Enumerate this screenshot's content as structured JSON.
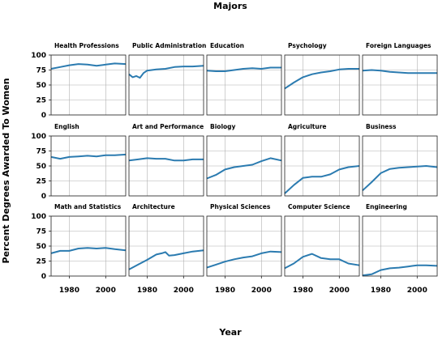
{
  "figure": {
    "title": "Majors",
    "xlabel": "Year",
    "ylabel": "Percent Degrees Awarded To Women"
  },
  "chart_data": {
    "type": "line",
    "x_range": [
      1970,
      2011
    ],
    "y_range": [
      0,
      100
    ],
    "x_ticks": [
      1980,
      2000
    ],
    "y_ticks": [
      0,
      25,
      50,
      75,
      100
    ],
    "grid": true,
    "line_color": "#2b7bb0",
    "panels": [
      {
        "name": "Health Professions",
        "x": [
          1970,
          1975,
          1980,
          1985,
          1990,
          1995,
          2000,
          2005,
          2011
        ],
        "y": [
          77,
          80,
          83,
          85,
          84,
          82,
          84,
          86,
          85
        ]
      },
      {
        "name": "Public Administration",
        "x": [
          1970,
          1972,
          1974,
          1976,
          1978,
          1980,
          1985,
          1990,
          1995,
          2000,
          2005,
          2011
        ],
        "y": [
          68,
          63,
          65,
          62,
          70,
          74,
          76,
          77,
          80,
          81,
          81,
          82
        ]
      },
      {
        "name": "Education",
        "x": [
          1970,
          1975,
          1980,
          1985,
          1990,
          1995,
          2000,
          2005,
          2011
        ],
        "y": [
          74,
          73,
          73,
          75,
          77,
          78,
          77,
          79,
          79
        ]
      },
      {
        "name": "Psychology",
        "x": [
          1970,
          1975,
          1980,
          1985,
          1990,
          1995,
          2000,
          2005,
          2011
        ],
        "y": [
          44,
          54,
          63,
          68,
          71,
          73,
          76,
          77,
          77
        ]
      },
      {
        "name": "Foreign Languages",
        "x": [
          1970,
          1975,
          1980,
          1985,
          1990,
          1995,
          2000,
          2005,
          2011
        ],
        "y": [
          74,
          75,
          74,
          72,
          71,
          70,
          70,
          70,
          70
        ]
      },
      {
        "name": "English",
        "x": [
          1970,
          1975,
          1980,
          1985,
          1990,
          1995,
          2000,
          2005,
          2011
        ],
        "y": [
          65,
          62,
          65,
          66,
          67,
          66,
          68,
          68,
          69
        ]
      },
      {
        "name": "Art and Performance",
        "x": [
          1970,
          1975,
          1980,
          1985,
          1990,
          1995,
          2000,
          2005,
          2011
        ],
        "y": [
          59,
          61,
          63,
          62,
          62,
          59,
          59,
          61,
          61
        ]
      },
      {
        "name": "Biology",
        "x": [
          1970,
          1975,
          1980,
          1985,
          1990,
          1995,
          2000,
          2005,
          2011
        ],
        "y": [
          29,
          35,
          44,
          48,
          50,
          52,
          58,
          63,
          59
        ]
      },
      {
        "name": "Agriculture",
        "x": [
          1970,
          1975,
          1980,
          1985,
          1990,
          1995,
          2000,
          2005,
          2011
        ],
        "y": [
          4,
          18,
          30,
          32,
          32,
          36,
          44,
          48,
          50
        ]
      },
      {
        "name": "Business",
        "x": [
          1970,
          1975,
          1980,
          1985,
          1990,
          1995,
          2000,
          2005,
          2011
        ],
        "y": [
          9,
          23,
          38,
          45,
          47,
          48,
          49,
          50,
          48
        ]
      },
      {
        "name": "Math and Statistics",
        "x": [
          1970,
          1975,
          1980,
          1985,
          1990,
          1995,
          2000,
          2005,
          2011
        ],
        "y": [
          38,
          42,
          42,
          46,
          47,
          46,
          47,
          45,
          43
        ]
      },
      {
        "name": "Architecture",
        "x": [
          1970,
          1975,
          1980,
          1985,
          1988,
          1990,
          1992,
          1995,
          2000,
          2005,
          2011
        ],
        "y": [
          11,
          19,
          27,
          36,
          38,
          40,
          34,
          35,
          38,
          41,
          43
        ]
      },
      {
        "name": "Physical Sciences",
        "x": [
          1970,
          1975,
          1980,
          1985,
          1990,
          1995,
          2000,
          2005,
          2011
        ],
        "y": [
          14,
          19,
          24,
          28,
          31,
          33,
          38,
          41,
          40
        ]
      },
      {
        "name": "Computer Science",
        "x": [
          1970,
          1975,
          1980,
          1985,
          1990,
          1995,
          2000,
          2005,
          2011
        ],
        "y": [
          13,
          21,
          32,
          37,
          30,
          28,
          28,
          21,
          18
        ]
      },
      {
        "name": "Engineering",
        "x": [
          1970,
          1975,
          1980,
          1985,
          1990,
          1995,
          2000,
          2005,
          2011
        ],
        "y": [
          1,
          3,
          10,
          13,
          14,
          16,
          18,
          18,
          17
        ]
      }
    ]
  }
}
